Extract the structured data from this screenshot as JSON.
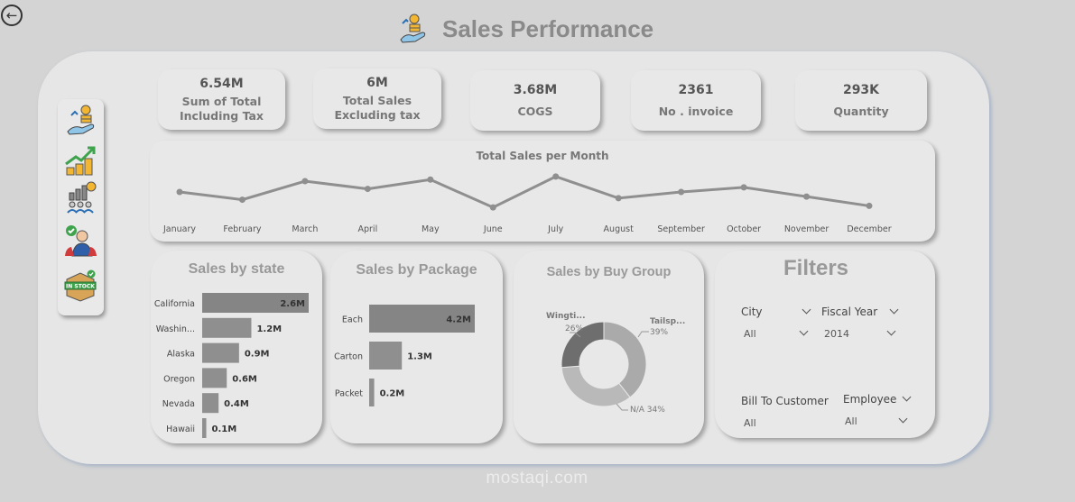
{
  "header": {
    "title": "Sales Performance"
  },
  "nav": {
    "items": [
      "sales-icon",
      "growth-icon",
      "team-stats-icon",
      "employee-icon",
      "in-stock-icon"
    ],
    "instock_label": "IN STOCK"
  },
  "kpis": [
    {
      "value": "6.54M",
      "label1": "Sum of Total",
      "label2": "Including Tax"
    },
    {
      "value": "6M",
      "label1": "Total Sales",
      "label2": "Excluding tax"
    },
    {
      "value": "3.68M",
      "label1": "COGS",
      "label2": ""
    },
    {
      "value": "2361",
      "label1": "No . invoice",
      "label2": ""
    },
    {
      "value": "293K",
      "label1": "Quantity",
      "label2": ""
    }
  ],
  "chart_data": [
    {
      "type": "line",
      "title": "Total Sales per Month",
      "categories": [
        "January",
        "February",
        "March",
        "April",
        "May",
        "June",
        "July",
        "August",
        "September",
        "October",
        "November",
        "December"
      ],
      "values": [
        0.54,
        0.49,
        0.61,
        0.56,
        0.62,
        0.44,
        0.64,
        0.5,
        0.54,
        0.57,
        0.51,
        0.45
      ],
      "ylim": [
        0.4,
        0.68
      ],
      "grid": false
    },
    {
      "type": "bar",
      "orientation": "horizontal",
      "title": "Sales by state",
      "categories": [
        "California",
        "Washin...",
        "Alaska",
        "Oregon",
        "Nevada",
        "Hawaii"
      ],
      "values": [
        2.6,
        1.2,
        0.9,
        0.6,
        0.4,
        0.1
      ],
      "labels": [
        "2.6M",
        "1.2M",
        "0.9M",
        "0.6M",
        "0.4M",
        "0.1M"
      ],
      "xlim": [
        0,
        2.6
      ]
    },
    {
      "type": "bar",
      "orientation": "horizontal",
      "title": "Sales by Package",
      "categories": [
        "Each",
        "Carton",
        "Packet"
      ],
      "values": [
        4.2,
        1.3,
        0.2
      ],
      "labels": [
        "4.2M",
        "1.3M",
        "0.2M"
      ],
      "xlim": [
        0,
        4.2
      ]
    },
    {
      "type": "pie",
      "donut": true,
      "title": "Sales by Buy Group",
      "slices": [
        {
          "label": "Tailsp...",
          "value": 39,
          "pct": "39%",
          "color": "#aaaaaa"
        },
        {
          "label": "N/A",
          "value": 34,
          "pct": "34%",
          "color": "#b9b9b9"
        },
        {
          "label": "Wingti...",
          "value": 26,
          "pct": "26%",
          "color": "#6e6e6e"
        }
      ],
      "na_text": "N/A 34%"
    }
  ],
  "filters": {
    "title": "Filters",
    "city": {
      "label": "City",
      "value": "All"
    },
    "fiscal_year": {
      "label": "Fiscal Year",
      "value": "2014"
    },
    "bill_to_customer": {
      "label": "Bill To Customer",
      "value": "All"
    },
    "employee": {
      "label": "Employee",
      "value": "All"
    }
  },
  "watermark": "mostaqi.com",
  "colors": {
    "line": "#8f8f8f",
    "bar": "#8f8f8f",
    "bar_top": "#858585",
    "card": "#e8e8e8",
    "panel": "#e6e6e6",
    "background": "#d4d4d4"
  }
}
